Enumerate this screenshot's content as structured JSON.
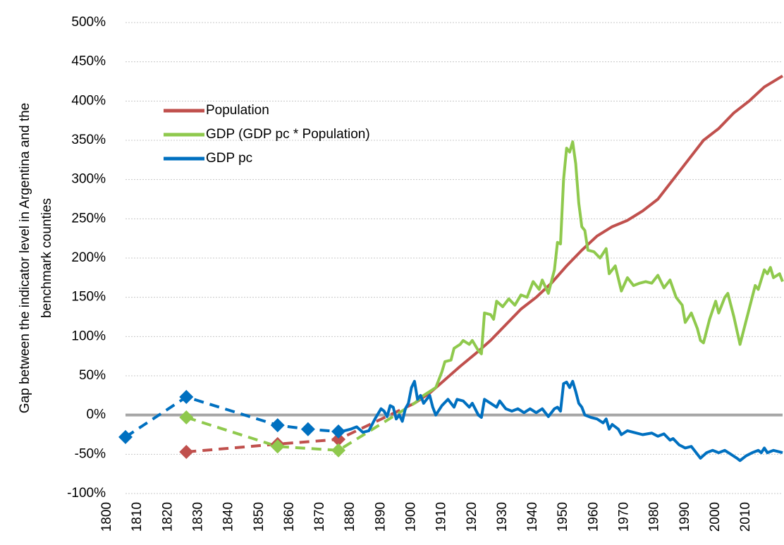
{
  "chart_data": {
    "type": "line",
    "ylabel": [
      "Gap between the indicator level in Argentina and the",
      "benchmark counties"
    ],
    "xlim": [
      1800,
      2016
    ],
    "xticks": [
      1800,
      1810,
      1820,
      1830,
      1840,
      1850,
      1860,
      1870,
      1880,
      1890,
      1900,
      1910,
      1920,
      1930,
      1940,
      1950,
      1960,
      1970,
      1980,
      1990,
      2000,
      2010
    ],
    "ylim": [
      -100,
      500
    ],
    "yticks": [
      {
        "value": -100,
        "label": "-100%"
      },
      {
        "value": -50,
        "label": "-50%"
      },
      {
        "value": 0,
        "label": "0%"
      },
      {
        "value": 50,
        "label": "50%"
      },
      {
        "value": 100,
        "label": "100%"
      },
      {
        "value": 150,
        "label": "150%"
      },
      {
        "value": 200,
        "label": "200%"
      },
      {
        "value": 250,
        "label": "250%"
      },
      {
        "value": 300,
        "label": "300%"
      },
      {
        "value": 350,
        "label": "350%"
      },
      {
        "value": 400,
        "label": "400%"
      },
      {
        "value": 450,
        "label": "450%"
      },
      {
        "value": 500,
        "label": "500%"
      }
    ],
    "grid": true,
    "zero_line": true,
    "legend": "upper left",
    "series": [
      {
        "name": "Population",
        "color": "#c0504d",
        "benchmarks": {
          "x": [
            1820,
            1850,
            1870
          ],
          "values": [
            -47,
            -37,
            -31
          ]
        },
        "x": [
          1895,
          1900,
          1905,
          1910,
          1915,
          1920,
          1925,
          1930,
          1935,
          1940,
          1945,
          1950,
          1955,
          1960,
          1965,
          1970,
          1975,
          1980,
          1985,
          1990,
          1995,
          2000,
          2005,
          2010,
          2016
        ],
        "values": [
          15,
          28,
          45,
          62,
          78,
          95,
          115,
          135,
          150,
          168,
          190,
          210,
          228,
          240,
          248,
          260,
          275,
          300,
          325,
          350,
          365,
          385,
          400,
          418,
          432
        ]
      },
      {
        "name": "GDP (GDP pc * Population)",
        "color": "#8fc94d",
        "benchmarks": {
          "x": [
            1820,
            1850,
            1870
          ],
          "values": [
            -3,
            -40,
            -45
          ]
        },
        "x": [
          1895,
          1898,
          1900,
          1902,
          1904,
          1905,
          1907,
          1908,
          1910,
          1911,
          1913,
          1914,
          1916,
          1917,
          1918,
          1920,
          1921,
          1922,
          1924,
          1926,
          1928,
          1930,
          1932,
          1934,
          1936,
          1937,
          1939,
          1941,
          1942,
          1943,
          1944,
          1945,
          1946,
          1947,
          1948,
          1949,
          1950,
          1951,
          1952,
          1954,
          1956,
          1958,
          1959,
          1961,
          1963,
          1965,
          1967,
          1969,
          1971,
          1973,
          1975,
          1977,
          1979,
          1981,
          1983,
          1984,
          1986,
          1988,
          1989,
          1990,
          1992,
          1994,
          1995,
          1997,
          1998,
          2000,
          2002,
          2003,
          2005,
          2007,
          2008,
          2010,
          2011,
          2012,
          2013,
          2015,
          2016
        ],
        "values": [
          15,
          25,
          30,
          35,
          55,
          68,
          70,
          85,
          90,
          95,
          90,
          95,
          82,
          78,
          130,
          128,
          122,
          145,
          138,
          148,
          140,
          153,
          150,
          170,
          160,
          172,
          155,
          185,
          220,
          218,
          300,
          340,
          335,
          348,
          320,
          270,
          240,
          235,
          210,
          208,
          200,
          212,
          180,
          190,
          158,
          175,
          165,
          168,
          170,
          168,
          178,
          162,
          172,
          150,
          140,
          118,
          130,
          110,
          95,
          92,
          122,
          145,
          130,
          150,
          155,
          125,
          90,
          105,
          135,
          165,
          160,
          185,
          180,
          188,
          175,
          180,
          170
        ]
      },
      {
        "name": "GDP pc",
        "color": "#0070c0",
        "benchmarks": {
          "x": [
            1800,
            1820,
            1850,
            1860,
            1870
          ],
          "values": [
            -28,
            23,
            -13,
            -18,
            -21
          ]
        },
        "x": [
          1870,
          1872,
          1874,
          1876,
          1878,
          1880,
          1882,
          1884,
          1885,
          1886,
          1887,
          1888,
          1889,
          1890,
          1891,
          1892,
          1893,
          1894,
          1895,
          1896,
          1897,
          1898,
          1900,
          1901,
          1902,
          1904,
          1906,
          1908,
          1909,
          1911,
          1913,
          1914,
          1916,
          1917,
          1918,
          1920,
          1922,
          1923,
          1925,
          1927,
          1929,
          1931,
          1933,
          1935,
          1937,
          1939,
          1941,
          1942,
          1943,
          1944,
          1945,
          1946,
          1947,
          1948,
          1949,
          1950,
          1951,
          1953,
          1955,
          1957,
          1958,
          1959,
          1960,
          1962,
          1963,
          1965,
          1967,
          1970,
          1973,
          1975,
          1977,
          1979,
          1980,
          1982,
          1984,
          1986,
          1988,
          1989,
          1991,
          1993,
          1995,
          1997,
          1999,
          2001,
          2002,
          2004,
          2006,
          2008,
          2009,
          2010,
          2011,
          2013,
          2015,
          2016
        ],
        "values": [
          -21,
          -20,
          -18,
          -15,
          -22,
          -20,
          -5,
          8,
          5,
          -2,
          12,
          10,
          -5,
          0,
          -8,
          8,
          15,
          35,
          43,
          20,
          25,
          15,
          25,
          10,
          0,
          12,
          20,
          10,
          20,
          18,
          10,
          15,
          0,
          -3,
          20,
          15,
          10,
          18,
          8,
          5,
          8,
          3,
          8,
          3,
          8,
          -2,
          8,
          10,
          5,
          40,
          42,
          35,
          43,
          30,
          15,
          10,
          0,
          -3,
          -5,
          -10,
          -5,
          -18,
          -12,
          -18,
          -25,
          -20,
          -22,
          -25,
          -23,
          -27,
          -24,
          -32,
          -30,
          -38,
          -42,
          -40,
          -50,
          -55,
          -48,
          -45,
          -48,
          -45,
          -50,
          -55,
          -58,
          -52,
          -48,
          -45,
          -48,
          -42,
          -48,
          -45,
          -47,
          -48
        ]
      }
    ]
  }
}
